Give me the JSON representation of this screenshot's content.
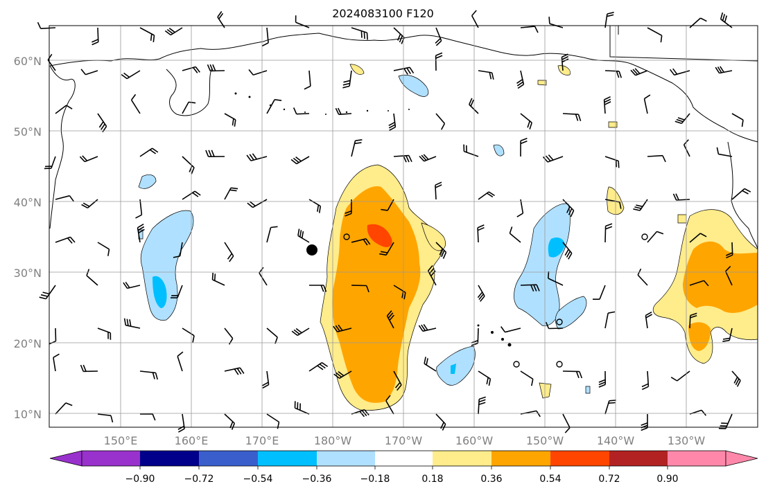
{
  "title": "2024083100 F120",
  "map": {
    "lat_ticks": [
      "60°N",
      "50°N",
      "40°N",
      "30°N",
      "20°N",
      "10°N"
    ],
    "lon_ticks": [
      "150°E",
      "160°E",
      "170°E",
      "180°W",
      "170°W",
      "160°W",
      "150°W",
      "140°W",
      "130°W"
    ],
    "tick_color": "#808080",
    "grid": true
  },
  "colorbar": {
    "ticks": [
      "−0.90",
      "−0.72",
      "−0.54",
      "−0.36",
      "−0.18",
      "0.18",
      "0.36",
      "0.54",
      "0.72",
      "0.90"
    ],
    "colors": [
      "#9932CC",
      "#00008B",
      "#3A5FCD",
      "#00BFFF",
      "#B0E0FF",
      "#FFFFFF",
      "#FFEC8B",
      "#FFA500",
      "#FF4500",
      "#B22222",
      "#FF88AA"
    ]
  }
}
